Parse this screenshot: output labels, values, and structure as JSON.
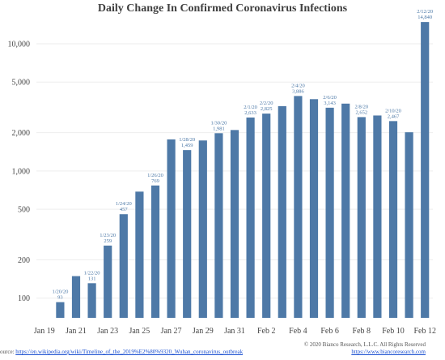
{
  "chart_data": {
    "type": "bar",
    "title": "Daily Change In Confirmed Coronavirus Infections",
    "yscale": "log",
    "ylim": [
      70,
      16000
    ],
    "yticks": [
      100,
      200,
      500,
      1000,
      2000,
      5000,
      10000
    ],
    "ytick_labels": [
      "100",
      "200",
      "500",
      "1,000",
      "2,000",
      "5,000",
      "10,000"
    ],
    "dates": [
      "1/19",
      "1/20",
      "1/21",
      "1/22",
      "1/23",
      "1/24",
      "1/25",
      "1/26",
      "1/27",
      "1/28",
      "1/29",
      "1/30",
      "1/31",
      "2/1",
      "2/2",
      "2/3",
      "2/4",
      "2/5",
      "2/6",
      "2/7",
      "2/8",
      "2/9",
      "2/10",
      "2/11",
      "2/12"
    ],
    "values": [
      0,
      93,
      149,
      131,
      259,
      457,
      688,
      769,
      1771,
      1459,
      1737,
      1981,
      2099,
      2633,
      2825,
      3235,
      3886,
      3670,
      3143,
      3385,
      2652,
      2730,
      2467,
      2015,
      14840
    ],
    "xtick_labels": [
      "Jan 19",
      "Jan 21",
      "Jan 23",
      "Jan 25",
      "Jan 27",
      "Jan 29",
      "Jan 31",
      "Feb 2",
      "Feb 4",
      "Feb 6",
      "Feb 8",
      "Feb 10",
      "Feb 12"
    ],
    "annotations": [
      {
        "index": 1,
        "date": "1/20/20",
        "value": "93"
      },
      {
        "index": 3,
        "date": "1/22/20",
        "value": "131"
      },
      {
        "index": 4,
        "date": "1/23/20",
        "value": "259"
      },
      {
        "index": 5,
        "date": "1/24/20",
        "value": "457"
      },
      {
        "index": 7,
        "date": "1/26/20",
        "value": "769"
      },
      {
        "index": 9,
        "date": "1/28/20",
        "value": "1,459"
      },
      {
        "index": 11,
        "date": "1/30/20",
        "value": "1,981"
      },
      {
        "index": 13,
        "date": "2/1/20",
        "value": "2,633"
      },
      {
        "index": 14,
        "date": "2/2/20",
        "value": "2,825"
      },
      {
        "index": 16,
        "date": "2/4/20",
        "value": "3,886"
      },
      {
        "index": 18,
        "date": "2/6/20",
        "value": "3,143"
      },
      {
        "index": 20,
        "date": "2/8/20",
        "value": "2,652"
      },
      {
        "index": 22,
        "date": "2/10/20",
        "value": "2,467"
      },
      {
        "index": 24,
        "date": "2/12/20",
        "value": "14,840"
      }
    ],
    "grid": true,
    "bar_color": "#4e79a7"
  },
  "footer": {
    "copyright": "© 2020 Bianco Research, L.L.C. All Rights Reserved",
    "website": "https://www.biancoresearch.com",
    "source_prefix": "ource: ",
    "source_url": "https://en.wikipedia.org/wiki/Timeline_of_the_2019%E2%80%9320_Wuhan_coronavirus_outbreak"
  }
}
